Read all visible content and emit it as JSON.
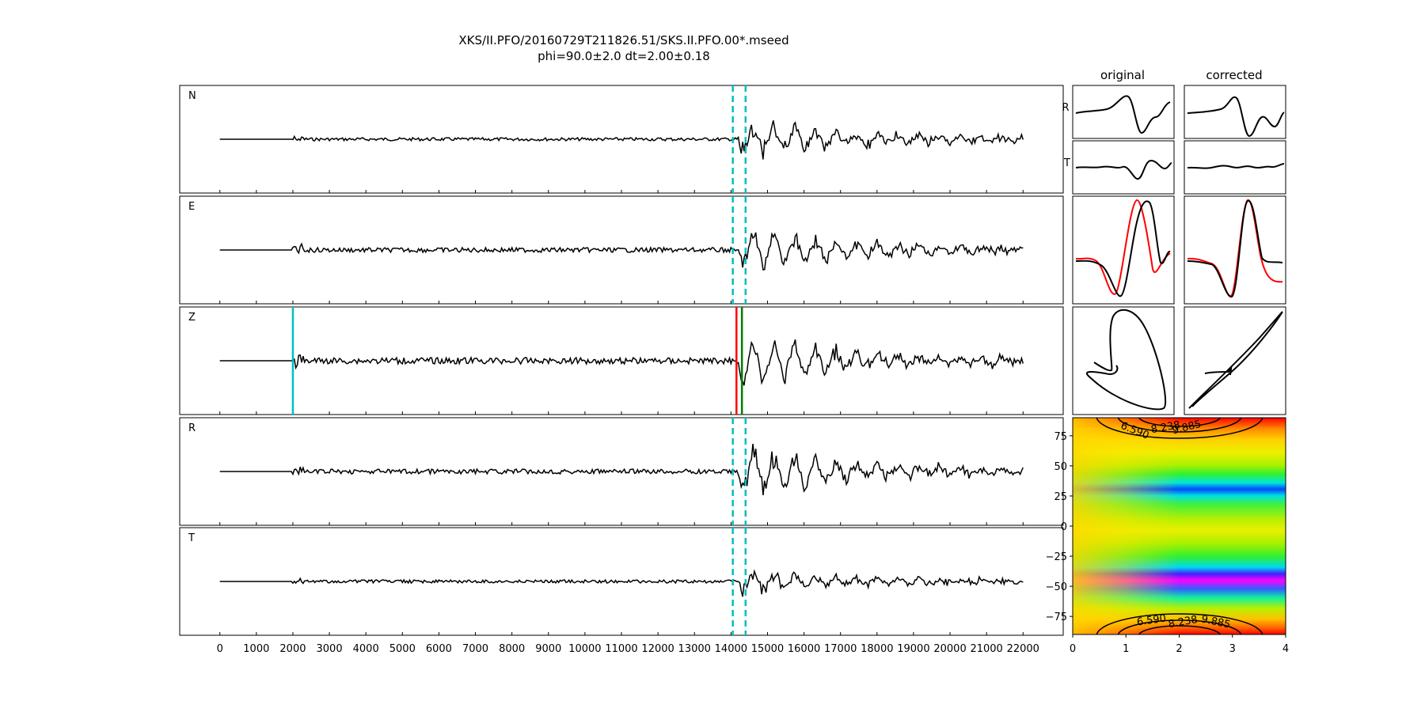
{
  "title": {
    "line1": "XKS/II.PFO/20160729T211826.51/SKS.II.PFO.00*.mseed",
    "line2": "phi=90.0±2.0 dt=2.00±0.18"
  },
  "colors": {
    "trace": "#000000",
    "window_marker": "#00bfbf",
    "red_marker": "#ff0000",
    "green_marker": "#008000",
    "frame": "#000000"
  },
  "chart_data": [
    {
      "type": "line",
      "name": "seismogram-traces",
      "traces": [
        "N",
        "E",
        "Z",
        "R",
        "T"
      ],
      "x_ticks": [
        0,
        1000,
        2000,
        3000,
        4000,
        5000,
        6000,
        7000,
        8000,
        9000,
        10000,
        11000,
        12000,
        13000,
        14000,
        15000,
        16000,
        17000,
        18000,
        19000,
        20000,
        21000,
        22000
      ],
      "xlim": [
        -1100,
        23100
      ],
      "data_range": [
        0,
        22000
      ],
      "noise_onset": 2000,
      "signal_onset": 14200,
      "window_markers": [
        14050,
        14400
      ],
      "vertical_markers_z": [
        {
          "x": 2000,
          "color": "cyan"
        },
        {
          "x": 14150,
          "color": "red"
        },
        {
          "x": 14300,
          "color": "green"
        }
      ]
    },
    {
      "type": "line",
      "name": "particle-motion-panels",
      "columns": [
        "original",
        "corrected"
      ],
      "rows": [
        "R",
        "T"
      ],
      "panels": [
        "R",
        "T",
        "overlay",
        "particle-motion"
      ]
    },
    {
      "type": "heatmap",
      "name": "error-surface",
      "x_ticks": [
        0,
        1,
        2,
        3,
        4
      ],
      "y_ticks": [
        75,
        50,
        25,
        0,
        -25,
        -50,
        -75
      ],
      "xlim": [
        0,
        4
      ],
      "ylim": [
        -90,
        90
      ],
      "contour_labels": [
        "6.590",
        "8.238",
        "9.885",
        "6.590",
        "8.238",
        "9.885"
      ]
    }
  ]
}
